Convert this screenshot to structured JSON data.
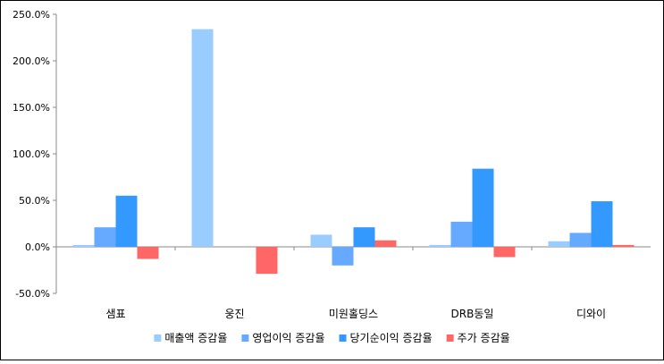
{
  "chart_data": {
    "type": "bar",
    "title": "",
    "xlabel": "",
    "ylabel": "",
    "categories": [
      "샘표",
      "웅진",
      "미원홀딩스",
      "DRB동일",
      "디와이"
    ],
    "ylim": [
      -50,
      250
    ],
    "yticks": [
      250,
      200,
      150,
      100,
      50,
      0,
      -50
    ],
    "ytick_labels": [
      "250.0%",
      "200.0%",
      "150.0%",
      "100.0%",
      "50.0%",
      "0.0%",
      "-50.0%"
    ],
    "grid": false,
    "legend_position": "bottom",
    "series": [
      {
        "name": "매출액 증감율",
        "color": "#99ccff",
        "values": [
          2,
          234,
          13,
          2,
          6
        ]
      },
      {
        "name": "영업이익 증감율",
        "color": "#66aaff",
        "values": [
          21,
          null,
          -20,
          27,
          15
        ]
      },
      {
        "name": "당기순이익 증감율",
        "color": "#3399ff",
        "values": [
          55,
          null,
          21,
          84,
          49
        ]
      },
      {
        "name": "주가 증감율",
        "color": "#ff6666",
        "values": [
          -13,
          -29,
          7,
          -11,
          2
        ]
      }
    ]
  }
}
